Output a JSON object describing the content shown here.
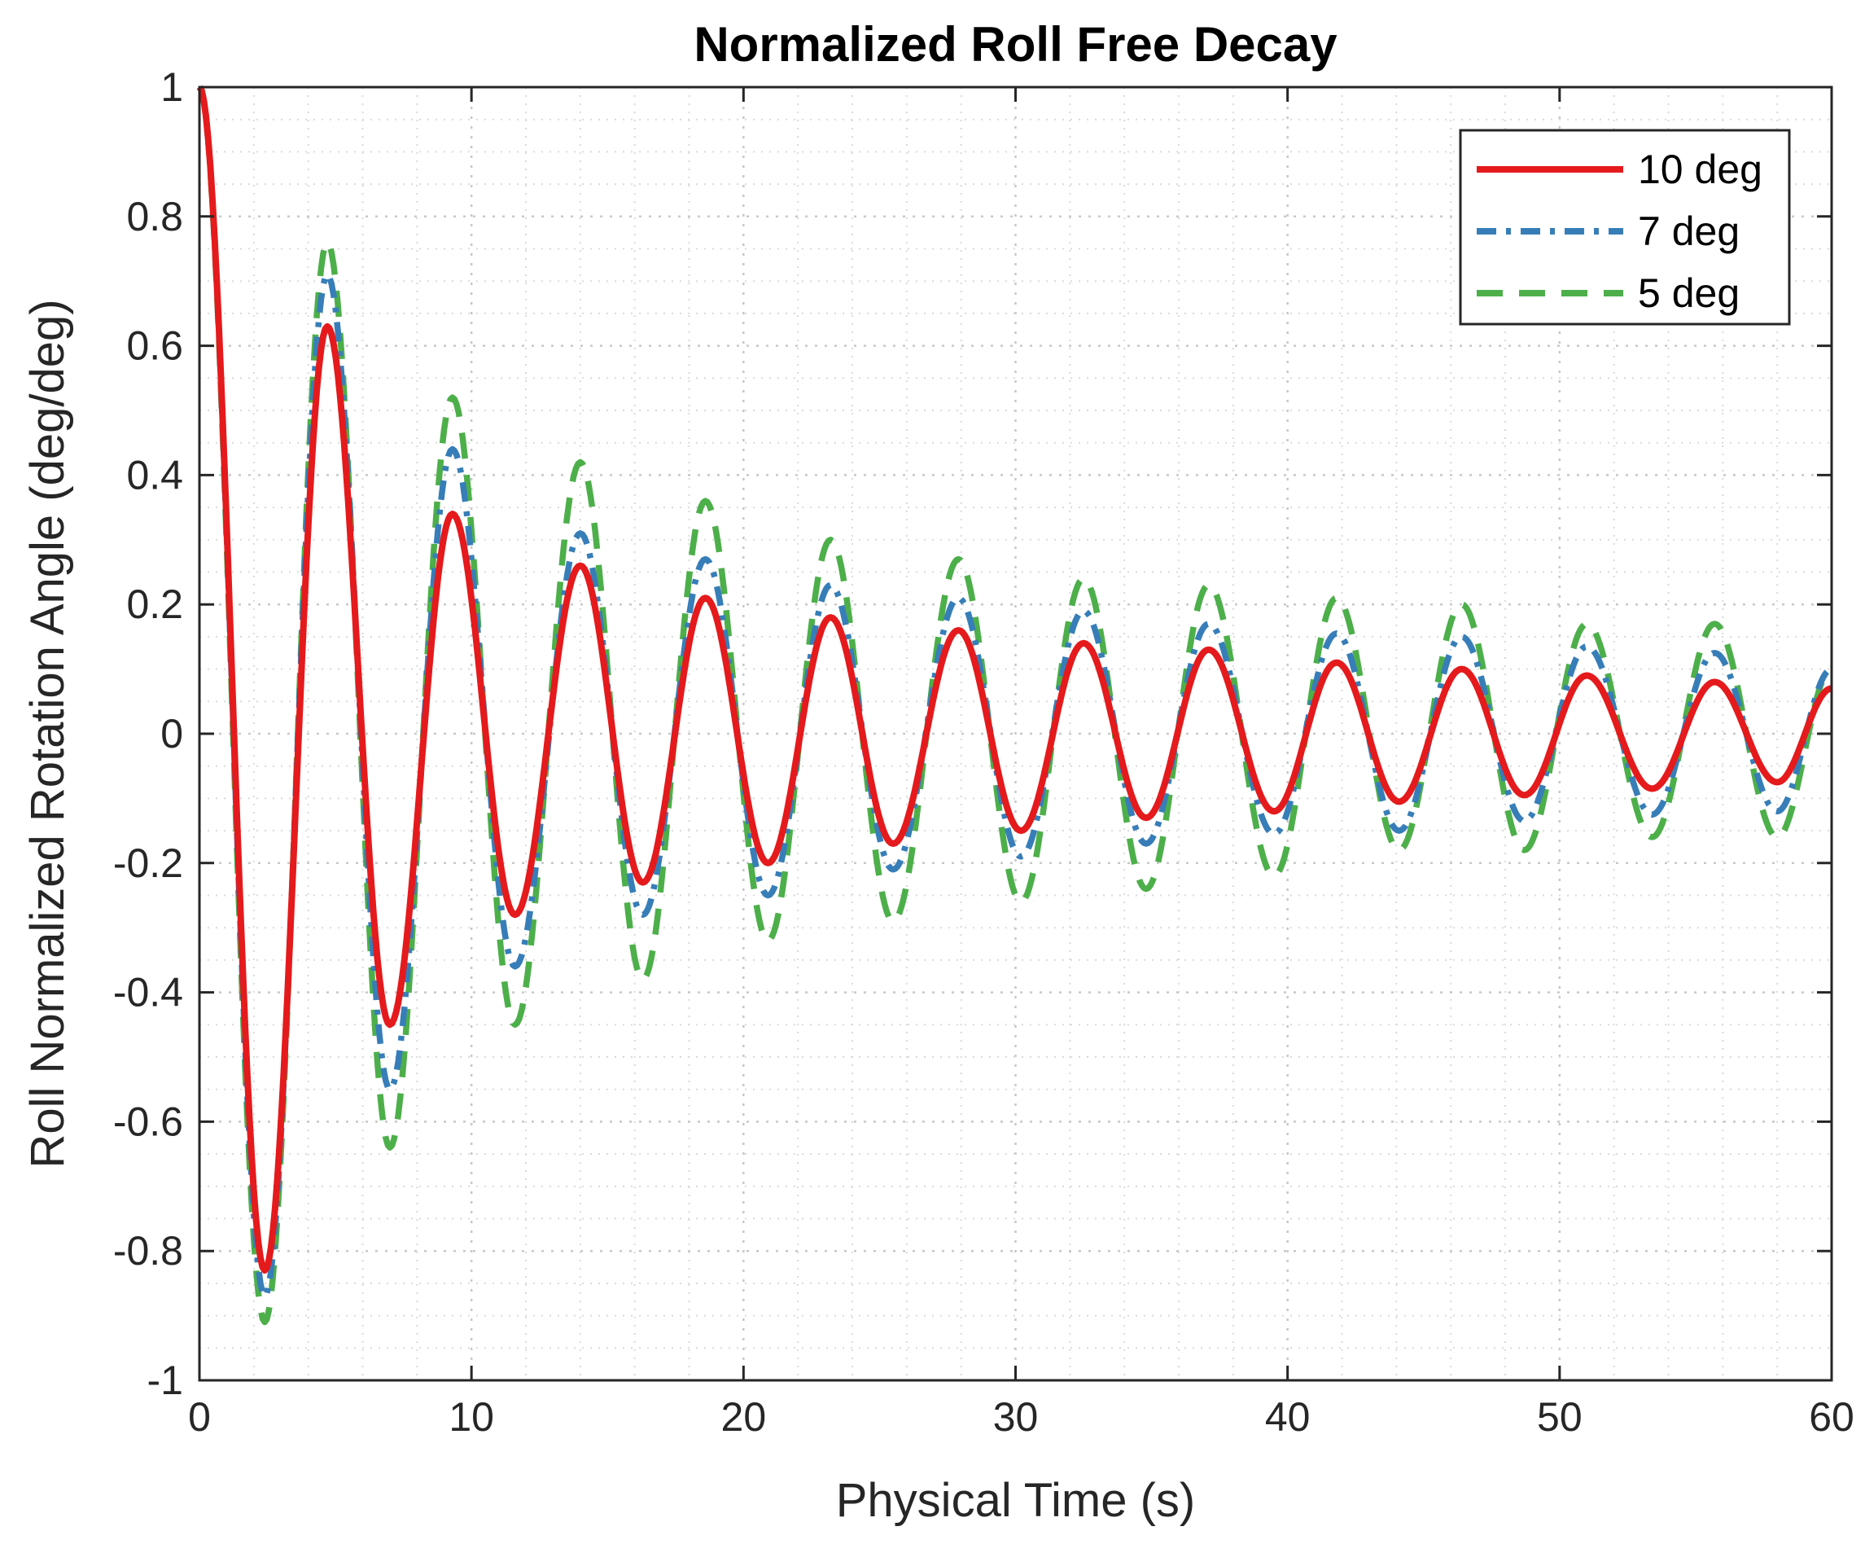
{
  "chart_data": {
    "type": "line",
    "title": "Normalized Roll Free Decay",
    "xlabel": "Physical Time (s)",
    "ylabel": "Roll Normalized Rotation Angle (deg/deg)",
    "xlim": [
      0,
      60
    ],
    "ylim": [
      -1,
      1
    ],
    "xticks": [
      0,
      10,
      20,
      30,
      40,
      50,
      60
    ],
    "xtick_labels": [
      "0",
      "10",
      "20",
      "30",
      "40",
      "50",
      "60"
    ],
    "yticks": [
      1,
      0.8,
      0.6,
      0.4,
      0.2,
      0,
      -0.2,
      -0.4,
      -0.6,
      -0.8,
      -1
    ],
    "ytick_labels": [
      "1",
      "0.8",
      "0.6",
      "0.4",
      "0.2",
      "0",
      "-0.2",
      "-0.4",
      "-0.6",
      "-0.8",
      "-1"
    ],
    "grid": "major and minor (dotted)",
    "legend_position": "top-right",
    "series": [
      {
        "name": "10 deg",
        "color": "#e41a1c",
        "style": "solid",
        "points": [
          [
            0,
            1
          ],
          [
            2.4,
            -0.83
          ],
          [
            4.7,
            0.63
          ],
          [
            7.0,
            -0.45
          ],
          [
            9.3,
            0.34
          ],
          [
            11.6,
            -0.28
          ],
          [
            14.0,
            0.26
          ],
          [
            16.3,
            -0.23
          ],
          [
            18.6,
            0.21
          ],
          [
            20.9,
            -0.2
          ],
          [
            23.2,
            0.18
          ],
          [
            25.5,
            -0.17
          ],
          [
            27.9,
            0.16
          ],
          [
            30.2,
            -0.15
          ],
          [
            32.5,
            0.14
          ],
          [
            34.8,
            -0.13
          ],
          [
            37.1,
            0.13
          ],
          [
            39.5,
            -0.12
          ],
          [
            41.8,
            0.11
          ],
          [
            44.1,
            -0.105
          ],
          [
            46.4,
            0.1
          ],
          [
            48.7,
            -0.095
          ],
          [
            51.0,
            0.09
          ],
          [
            53.4,
            -0.085
          ],
          [
            55.7,
            0.08
          ],
          [
            58.0,
            -0.075
          ],
          [
            60,
            0.07
          ]
        ]
      },
      {
        "name": "7 deg",
        "color": "#377eb8",
        "style": "dashdot",
        "points": [
          [
            0,
            1
          ],
          [
            2.4,
            -0.87
          ],
          [
            4.7,
            0.71
          ],
          [
            7.0,
            -0.55
          ],
          [
            9.3,
            0.44
          ],
          [
            11.6,
            -0.36
          ],
          [
            14.0,
            0.31
          ],
          [
            16.3,
            -0.28
          ],
          [
            18.6,
            0.27
          ],
          [
            20.9,
            -0.25
          ],
          [
            23.2,
            0.23
          ],
          [
            25.5,
            -0.21
          ],
          [
            27.9,
            0.21
          ],
          [
            30.2,
            -0.19
          ],
          [
            32.5,
            0.19
          ],
          [
            34.8,
            -0.17
          ],
          [
            37.1,
            0.17
          ],
          [
            39.5,
            -0.155
          ],
          [
            41.8,
            0.155
          ],
          [
            44.1,
            -0.15
          ],
          [
            46.4,
            0.15
          ],
          [
            48.7,
            -0.135
          ],
          [
            51.0,
            0.135
          ],
          [
            53.4,
            -0.125
          ],
          [
            55.7,
            0.125
          ],
          [
            58.0,
            -0.12
          ],
          [
            60,
            0.1
          ]
        ]
      },
      {
        "name": "5 deg",
        "color": "#4daf4a",
        "style": "dashed",
        "points": [
          [
            0,
            1
          ],
          [
            2.4,
            -0.91
          ],
          [
            4.7,
            0.76
          ],
          [
            7.0,
            -0.64
          ],
          [
            9.3,
            0.52
          ],
          [
            11.6,
            -0.45
          ],
          [
            14.0,
            0.42
          ],
          [
            16.3,
            -0.38
          ],
          [
            18.6,
            0.36
          ],
          [
            20.9,
            -0.32
          ],
          [
            23.2,
            0.3
          ],
          [
            25.5,
            -0.29
          ],
          [
            27.9,
            0.27
          ],
          [
            30.2,
            -0.26
          ],
          [
            32.5,
            0.24
          ],
          [
            34.8,
            -0.24
          ],
          [
            37.1,
            0.23
          ],
          [
            39.5,
            -0.22
          ],
          [
            41.8,
            0.21
          ],
          [
            44.1,
            -0.18
          ],
          [
            46.4,
            0.2
          ],
          [
            48.7,
            -0.18
          ],
          [
            51.0,
            0.17
          ],
          [
            53.4,
            -0.16
          ],
          [
            55.7,
            0.17
          ],
          [
            58.0,
            -0.16
          ],
          [
            60,
            0.1
          ]
        ]
      }
    ]
  }
}
